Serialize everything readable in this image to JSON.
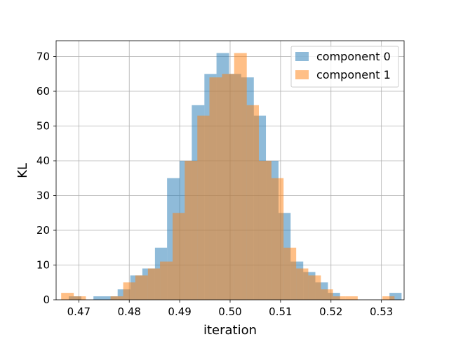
{
  "chart_data": {
    "type": "histogram",
    "title": "",
    "xlabel": "iteration",
    "ylabel": "KL",
    "xlim": [
      0.4655,
      0.5345
    ],
    "ylim": [
      0,
      74.55
    ],
    "x_ticks": [
      0.47,
      0.48,
      0.49,
      0.5,
      0.51,
      0.52,
      0.53
    ],
    "x_tick_labels": [
      "0.47",
      "0.48",
      "0.49",
      "0.50",
      "0.51",
      "0.52",
      "0.53"
    ],
    "y_ticks": [
      0,
      10,
      20,
      30,
      40,
      50,
      60,
      70
    ],
    "y_tick_labels": [
      "0",
      "10",
      "20",
      "30",
      "40",
      "50",
      "60",
      "70"
    ],
    "grid": true,
    "legend_position": "top-right",
    "series": [
      {
        "name": "component 0",
        "color": "#1f77b4",
        "alpha": 0.5,
        "bins": [
          [
            0.468,
            0.4705,
            1
          ],
          [
            0.4729,
            0.4777,
            1
          ],
          [
            0.4777,
            0.4802,
            3
          ],
          [
            0.4802,
            0.4826,
            7
          ],
          [
            0.4826,
            0.4851,
            9
          ],
          [
            0.4851,
            0.4875,
            15
          ],
          [
            0.4875,
            0.49,
            35
          ],
          [
            0.49,
            0.4924,
            40
          ],
          [
            0.4924,
            0.4949,
            56
          ],
          [
            0.4949,
            0.4973,
            65
          ],
          [
            0.4973,
            0.4998,
            71
          ],
          [
            0.4998,
            0.5022,
            65
          ],
          [
            0.5022,
            0.5047,
            64
          ],
          [
            0.5047,
            0.5071,
            53
          ],
          [
            0.5071,
            0.5096,
            40
          ],
          [
            0.5096,
            0.512,
            25
          ],
          [
            0.512,
            0.5145,
            11
          ],
          [
            0.5145,
            0.5169,
            8
          ],
          [
            0.5169,
            0.5194,
            5
          ],
          [
            0.5194,
            0.5218,
            2
          ],
          [
            0.5316,
            0.534,
            2
          ]
        ]
      },
      {
        "name": "component 1",
        "color": "#ff7f0e",
        "alpha": 0.5,
        "bins": [
          [
            0.4665,
            0.469,
            2
          ],
          [
            0.469,
            0.4714,
            1
          ],
          [
            0.4763,
            0.4788,
            1
          ],
          [
            0.4788,
            0.4812,
            5
          ],
          [
            0.4812,
            0.4837,
            7
          ],
          [
            0.4837,
            0.4861,
            9
          ],
          [
            0.4861,
            0.4886,
            11
          ],
          [
            0.4886,
            0.491,
            25
          ],
          [
            0.491,
            0.4935,
            40
          ],
          [
            0.4935,
            0.4959,
            53
          ],
          [
            0.4959,
            0.4984,
            64
          ],
          [
            0.4984,
            0.5008,
            65
          ],
          [
            0.5008,
            0.5033,
            71
          ],
          [
            0.5033,
            0.5057,
            56
          ],
          [
            0.5057,
            0.5082,
            40
          ],
          [
            0.5082,
            0.5106,
            35
          ],
          [
            0.5106,
            0.5131,
            15
          ],
          [
            0.5131,
            0.5155,
            9
          ],
          [
            0.5155,
            0.518,
            7
          ],
          [
            0.518,
            0.5204,
            3
          ],
          [
            0.5204,
            0.5229,
            1
          ],
          [
            0.5229,
            0.5253,
            1
          ],
          [
            0.5302,
            0.5326,
            1
          ]
        ]
      }
    ]
  }
}
